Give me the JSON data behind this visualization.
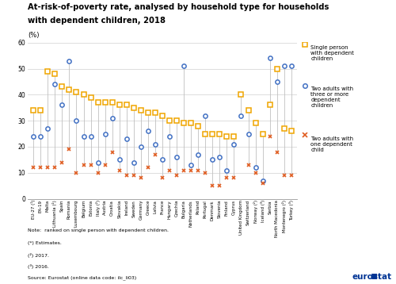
{
  "title_line1": "At-risk-of-poverty rate, analysed by household type for households",
  "title_line2": "with dependent children, 2018",
  "ylabel": "(%)",
  "ylim": [
    0,
    60
  ],
  "yticks": [
    0,
    10,
    20,
    30,
    40,
    50,
    60
  ],
  "countries": [
    "EU-27 (¹)",
    "EA-19",
    "Malta",
    "Lithuania (²)",
    "Spain",
    "Romania",
    "Luxembourg",
    "Belgium",
    "Estonia",
    "Italy (²)",
    "Austria",
    "Croatia",
    "Slovakia",
    "Ireland",
    "Sweden",
    "Germany",
    "Greece",
    "Latvia",
    "France",
    "Hungary",
    "Czechia",
    "Bulgaria",
    "Netherlands",
    "Poland",
    "Portugal",
    "Denmark",
    "Slovenia",
    "Finland",
    "Cyprus",
    "United Kingdom",
    "Switzerland",
    "Norway (²)",
    "Iceland (³)",
    "Serbia",
    "North Macedonia",
    "Montenegro (²)",
    "Turkey (³)"
  ],
  "single_parent": [
    34,
    34,
    49,
    48,
    43,
    42,
    41,
    40,
    39,
    37,
    37,
    37,
    36,
    36,
    35,
    34,
    33,
    33,
    32,
    30,
    30,
    29,
    29,
    28,
    25,
    25,
    25,
    24,
    24,
    40,
    34,
    29,
    25,
    36,
    50,
    27,
    26
  ],
  "two_adults_3plus": [
    24,
    24,
    27,
    44,
    36,
    53,
    30,
    24,
    24,
    14,
    25,
    31,
    15,
    23,
    14,
    20,
    26,
    21,
    15,
    24,
    16,
    51,
    13,
    17,
    32,
    15,
    16,
    11,
    21,
    32,
    25,
    12,
    7,
    54,
    45,
    51,
    51
  ],
  "two_adults_1child": [
    12,
    12,
    12,
    12,
    14,
    19,
    10,
    13,
    13,
    10,
    13,
    18,
    11,
    9,
    9,
    8,
    12,
    17,
    8,
    11,
    9,
    11,
    11,
    11,
    10,
    5,
    5,
    8,
    8,
    null,
    13,
    10,
    6,
    24,
    18,
    9,
    9
  ],
  "color_single": "#f0a500",
  "color_3plus": "#4472c4",
  "color_1child": "#e05c20",
  "bg_color": "#ffffff",
  "grid_color": "#d0d0d0",
  "note1": "Note:  ranked on single person with dependent children.",
  "note2": "(*) Estimates.",
  "note3": "(²) 2017.",
  "note4": "(³) 2016.",
  "note5": "Source: Eurostat (online data code: ilc_li03)",
  "legend1": "Single person\nwith dependent\nchildren",
  "legend2": "Two adults with\nthree or more\ndependent\nchildren",
  "legend3": "Two adults with\none dependent\nchild"
}
